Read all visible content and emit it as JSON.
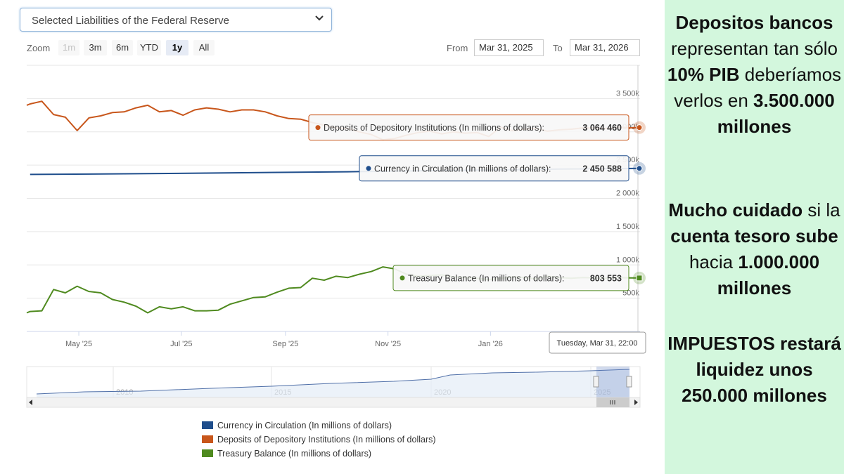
{
  "selector": {
    "value": "Selected Liabilities of the Federal Reserve"
  },
  "zoom": {
    "label": "Zoom",
    "buttons": [
      "1m",
      "3m",
      "6m",
      "YTD",
      "1y",
      "All"
    ],
    "active": "1y",
    "disabled": [
      "1m"
    ]
  },
  "range": {
    "from_label": "From",
    "from": "Mar 31, 2025",
    "to_label": "To",
    "to": "Mar 31, 2026"
  },
  "colors": {
    "currency": "#1f4e8c",
    "deposits": "#c8561b",
    "treasury": "#4f8a1f"
  },
  "chart_data": {
    "type": "line",
    "title": "",
    "y_axis": {
      "min": 0,
      "max": 3500000,
      "ticks": [
        "3 500k",
        "3 000k",
        "2 500k",
        "2 000k",
        "1 500k",
        "1 000k",
        "500k"
      ],
      "tick_values": [
        3500000,
        3000000,
        2500000,
        2000000,
        1500000,
        1000000,
        500000
      ]
    },
    "x_axis": {
      "ticks": [
        "May '25",
        "Jul '25",
        "Sep '25",
        "Nov '25",
        "Jan '26"
      ]
    },
    "series": [
      {
        "name": "Currency in Circulation (In millions of dollars)",
        "color": "#1f4e8c",
        "x": [
          "2025-04-02",
          "2025-06-04",
          "2025-08-06",
          "2025-10-08",
          "2025-12-10",
          "2026-02-11",
          "2026-03-31"
        ],
        "values": [
          2360000,
          2370000,
          2385000,
          2400000,
          2420000,
          2440000,
          2450588
        ]
      },
      {
        "name": "Deposits of Depository Institutions (In millions of dollars)",
        "color": "#c8561b",
        "x": [
          "2025-03-31",
          "2025-04-02",
          "2025-04-09",
          "2025-04-16",
          "2025-04-23",
          "2025-04-30",
          "2025-05-07",
          "2025-05-14",
          "2025-05-21",
          "2025-05-28",
          "2025-06-04",
          "2025-06-11",
          "2025-06-18",
          "2025-06-25",
          "2025-07-02",
          "2025-07-09",
          "2025-07-16",
          "2025-07-23",
          "2025-07-30",
          "2025-08-06",
          "2025-08-13",
          "2025-08-20",
          "2025-08-27",
          "2025-09-03",
          "2025-09-10",
          "2025-09-17",
          "2025-09-24",
          "2025-10-01",
          "2025-10-08",
          "2025-10-15",
          "2025-10-22",
          "2025-10-29",
          "2025-11-05",
          "2025-11-12",
          "2025-11-19",
          "2025-11-26",
          "2025-12-03",
          "2025-12-10",
          "2025-12-17",
          "2025-12-24",
          "2025-12-31",
          "2026-01-07",
          "2026-01-14",
          "2026-01-21",
          "2026-01-28",
          "2026-02-04",
          "2026-02-11",
          "2026-02-18",
          "2026-02-25",
          "2026-03-04",
          "2026-03-11",
          "2026-03-18",
          "2026-03-25",
          "2026-03-31"
        ],
        "values": [
          3400000,
          3420000,
          3460000,
          3260000,
          3220000,
          3020000,
          3210000,
          3240000,
          3290000,
          3300000,
          3360000,
          3400000,
          3300000,
          3320000,
          3250000,
          3330000,
          3360000,
          3340000,
          3300000,
          3330000,
          3330000,
          3300000,
          3240000,
          3200000,
          3190000,
          3140000,
          3100000,
          3060000,
          3050000,
          3000000,
          2960000,
          2880000,
          2900000,
          2950000,
          2990000,
          3010000,
          2970000,
          3000000,
          2980000,
          2990000,
          2930000,
          3070000,
          3020000,
          3040000,
          3050000,
          3010000,
          3030000,
          3040000,
          3060000,
          3060000,
          3050000,
          3070000,
          3060000,
          3064460
        ]
      },
      {
        "name": "Treasury Balance (In millions of dollars)",
        "color": "#4f8a1f",
        "x": [
          "2025-03-31",
          "2025-04-02",
          "2025-04-09",
          "2025-04-16",
          "2025-04-23",
          "2025-04-30",
          "2025-05-07",
          "2025-05-14",
          "2025-05-21",
          "2025-05-28",
          "2025-06-04",
          "2025-06-11",
          "2025-06-18",
          "2025-06-25",
          "2025-07-02",
          "2025-07-09",
          "2025-07-16",
          "2025-07-23",
          "2025-07-30",
          "2025-08-06",
          "2025-08-13",
          "2025-08-20",
          "2025-08-27",
          "2025-09-03",
          "2025-09-10",
          "2025-09-17",
          "2025-09-24",
          "2025-10-01",
          "2025-10-08",
          "2025-10-15",
          "2025-10-22",
          "2025-10-29",
          "2025-11-05",
          "2025-11-12",
          "2025-11-19",
          "2025-11-26",
          "2025-12-03",
          "2025-12-10",
          "2025-12-17",
          "2025-12-24",
          "2025-12-31",
          "2026-01-07",
          "2026-01-14",
          "2026-01-21",
          "2026-01-28",
          "2026-02-04",
          "2026-02-11",
          "2026-02-18",
          "2026-02-25",
          "2026-03-04",
          "2026-03-11",
          "2026-03-18",
          "2026-03-25",
          "2026-03-31"
        ],
        "values": [
          280000,
          300000,
          310000,
          630000,
          580000,
          680000,
          600000,
          580000,
          480000,
          440000,
          380000,
          280000,
          370000,
          340000,
          370000,
          310000,
          310000,
          320000,
          410000,
          460000,
          510000,
          520000,
          590000,
          650000,
          660000,
          800000,
          770000,
          830000,
          810000,
          860000,
          900000,
          970000,
          940000,
          860000,
          830000,
          840000,
          850000,
          820000,
          810000,
          800000,
          780000,
          800000,
          820000,
          810000,
          790000,
          830000,
          810000,
          800000,
          810000,
          805000,
          800000,
          810000,
          805000,
          803553
        ]
      }
    ],
    "tooltips": [
      {
        "series": "Deposits of Depository Institutions (In millions of dollars)",
        "label": "Deposits of Depository Institutions (In millions of dollars):",
        "value": "3 064 460"
      },
      {
        "series": "Currency in Circulation (In millions of dollars)",
        "label": "Currency in Circulation (In millions of dollars):",
        "value": "2 450 588"
      },
      {
        "series": "Treasury Balance (In millions of dollars)",
        "label": "Treasury Balance (In millions of dollars):",
        "value": "803 553"
      }
    ],
    "crosshair_label": "Tuesday, Mar 31, 22:00",
    "navigator": {
      "x_ticks": [
        "2010",
        "2015",
        "2020",
        "2025"
      ]
    },
    "legend": [
      {
        "label": "Currency in Circulation (In millions of dollars)",
        "color": "#1f4e8c"
      },
      {
        "label": "Deposits of Depository Institutions (In millions of dollars)",
        "color": "#c8561b"
      },
      {
        "label": "Treasury Balance (In millions of dollars)",
        "color": "#4f8a1f"
      }
    ]
  },
  "sidebar": {
    "p1": [
      {
        "text": "Depositos bancos",
        "bold": true
      },
      {
        "text": " representan tan sólo ",
        "bold": false
      },
      {
        "text": "10% PIB",
        "bold": true
      },
      {
        "text": " deberíamos verlos en ",
        "bold": false
      },
      {
        "text": "3.500.000 millones",
        "bold": true
      }
    ],
    "p2": [
      {
        "text": "Mucho cuidado",
        "bold": true
      },
      {
        "text": " si la ",
        "bold": false
      },
      {
        "text": "cuenta tesoro sube",
        "bold": true
      },
      {
        "text": " hacia ",
        "bold": false
      },
      {
        "text": "1.000.000 millones",
        "bold": true
      }
    ],
    "p3": [
      {
        "text": "IMPUESTOS restará liquidez unos 250.000 millones",
        "bold": true
      }
    ]
  }
}
